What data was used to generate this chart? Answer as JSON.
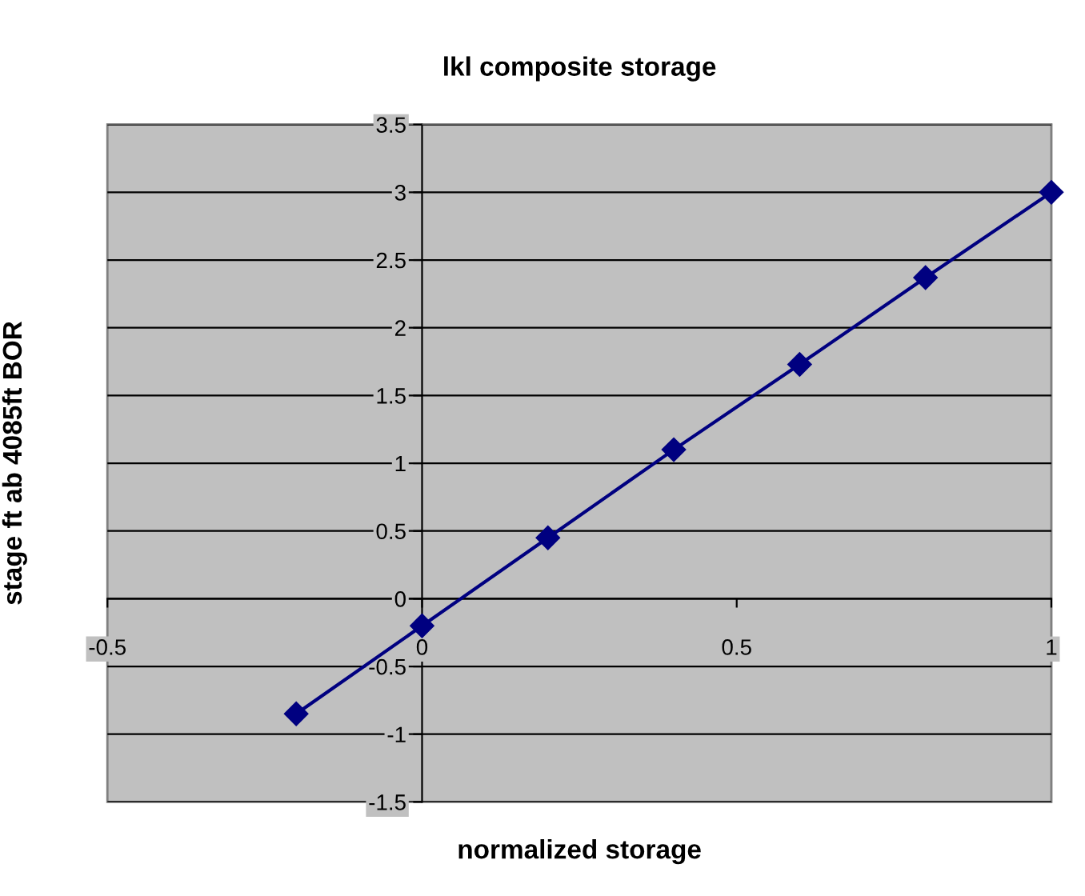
{
  "chart_data": {
    "type": "line",
    "title": "lkl composite storage",
    "xlabel": "normalized storage",
    "ylabel": "stage ft ab 4085ft BOR",
    "x": [
      -0.2,
      0,
      0.2,
      0.4,
      0.6,
      0.8,
      1.0
    ],
    "series": [
      {
        "color": "#000080",
        "values": [
          -0.85,
          -0.2,
          0.45,
          1.1,
          1.73,
          2.37,
          3.0
        ]
      }
    ],
    "xlim": [
      -0.5,
      1
    ],
    "xticks": [
      -0.5,
      0,
      0.5,
      1
    ],
    "ylim": [
      -1.5,
      3.5
    ],
    "yticks": [
      -1.5,
      -1,
      -0.5,
      0,
      0.5,
      1,
      1.5,
      2,
      2.5,
      3,
      3.5
    ],
    "grid": "y",
    "marker": "diamond",
    "line_style": "solid",
    "legend": false
  }
}
